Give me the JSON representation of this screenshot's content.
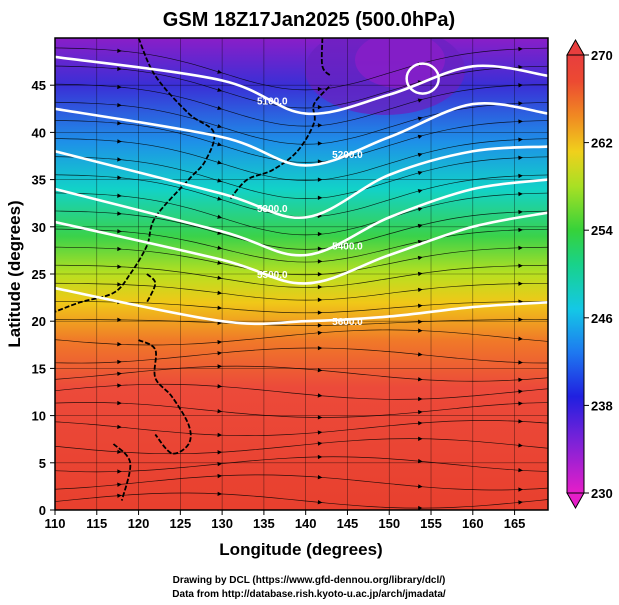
{
  "chart_data": {
    "type": "heatmap",
    "title": "GSM 18Z17Jan2025 (500.0hPa)",
    "xlabel": "Longitude (degrees)",
    "ylabel": "Latitude  (degrees)",
    "xlim": [
      110,
      169
    ],
    "ylim": [
      0,
      50
    ],
    "xticks": [
      "110",
      "115",
      "120",
      "125",
      "130",
      "135",
      "140",
      "145",
      "150",
      "155",
      "160",
      "165"
    ],
    "yticks": [
      "0",
      "5",
      "10",
      "15",
      "20",
      "25",
      "30",
      "35",
      "40",
      "45"
    ],
    "colorbar": {
      "range": [
        230,
        270
      ],
      "ticks": [
        "230",
        "238",
        "246",
        "254",
        "262",
        "270"
      ]
    },
    "contours": [
      {
        "label": "5100.0",
        "lat_by_lon": {
          "110": 48,
          "130": 45.5,
          "140": 42,
          "150": 44,
          "160": 47,
          "169": 46
        }
      },
      {
        "label": "5200.0",
        "lat_by_lon": {
          "110": 42.5,
          "130": 39.5,
          "140": 36.5,
          "150": 39.5,
          "160": 43,
          "169": 42
        }
      },
      {
        "label": "5300.0",
        "lat_by_lon": {
          "110": 38,
          "130": 33.5,
          "140": 31,
          "150": 35.5,
          "160": 38,
          "169": 38.5
        }
      },
      {
        "label": "5400.0",
        "lat_by_lon": {
          "110": 34,
          "130": 29.5,
          "140": 27,
          "150": 31,
          "160": 34,
          "169": 35
        }
      },
      {
        "label": "5500.0",
        "lat_by_lon": {
          "110": 30.5,
          "130": 26.5,
          "140": 24,
          "150": 27,
          "160": 30,
          "169": 31.5
        }
      },
      {
        "label": "5600.0",
        "lat_by_lon": {
          "110": 23.5,
          "130": 20,
          "140": 20,
          "150": 20.5,
          "160": 21.5,
          "169": 22
        }
      }
    ],
    "low_center": {
      "label": "5100.0",
      "lon": 154,
      "lat": 45.7
    }
  },
  "credits": {
    "line1": "Drawing by DCL (https://www.gfd-dennou.org/library/dcl/)",
    "line2": "Data from http://database.rish.kyoto-u.ac.jp/arch/jmadata/"
  }
}
